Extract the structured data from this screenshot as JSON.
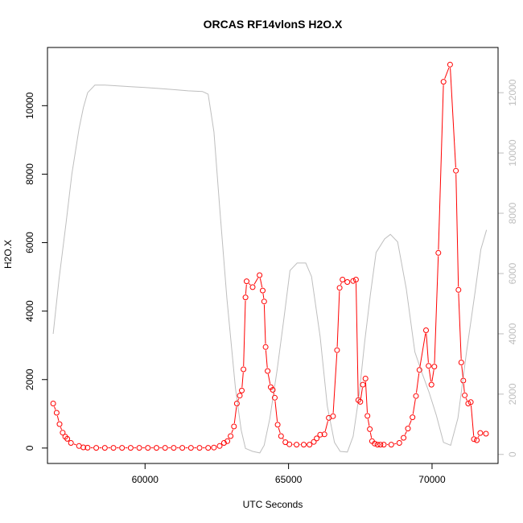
{
  "chart_data": {
    "type": "line",
    "title": "ORCAS RF14vlonS H2O.X",
    "xlabel": "UTC Seconds",
    "ylabel": "H2O.X",
    "xlim": [
      56600,
      72300
    ],
    "ylim_left": [
      -450,
      11700
    ],
    "ylim_right": [
      -300,
      13500
    ],
    "x_ticks": [
      60000,
      65000,
      70000
    ],
    "x_tick_labels": [
      "60000",
      "65000",
      "70000"
    ],
    "y_ticks_left": [
      0,
      2000,
      4000,
      6000,
      8000,
      10000
    ],
    "y_tick_labels_left": [
      "0",
      "2000",
      "4000",
      "6000",
      "8000",
      "10000"
    ],
    "y_ticks_right": [
      0,
      2000,
      4000,
      6000,
      8000,
      10000,
      12000
    ],
    "y_tick_labels_right": [
      "0",
      "2000",
      "4000",
      "6000",
      "8000",
      "10000",
      "12000"
    ],
    "grid": false,
    "series": [
      {
        "axis": "left",
        "color": "#ff0000",
        "style": "line+open-circle",
        "points": [
          [
            56800,
            1300
          ],
          [
            56920,
            1030
          ],
          [
            57020,
            700
          ],
          [
            57130,
            450
          ],
          [
            57220,
            330
          ],
          [
            57290,
            270
          ],
          [
            57420,
            150
          ],
          [
            57700,
            60
          ],
          [
            57850,
            20
          ],
          [
            58000,
            10
          ],
          [
            58300,
            5
          ],
          [
            58600,
            5
          ],
          [
            58900,
            5
          ],
          [
            59200,
            5
          ],
          [
            59500,
            5
          ],
          [
            59800,
            5
          ],
          [
            60100,
            5
          ],
          [
            60400,
            5
          ],
          [
            60700,
            5
          ],
          [
            61000,
            5
          ],
          [
            61300,
            5
          ],
          [
            61600,
            5
          ],
          [
            61900,
            5
          ],
          [
            62200,
            5
          ],
          [
            62400,
            15
          ],
          [
            62600,
            60
          ],
          [
            62750,
            150
          ],
          [
            62870,
            200
          ],
          [
            62980,
            350
          ],
          [
            63100,
            630
          ],
          [
            63200,
            1300
          ],
          [
            63300,
            1530
          ],
          [
            63370,
            1680
          ],
          [
            63430,
            2300
          ],
          [
            63500,
            4400
          ],
          [
            63540,
            4870
          ],
          [
            63750,
            4700
          ],
          [
            63990,
            5050
          ],
          [
            64100,
            4600
          ],
          [
            64150,
            4280
          ],
          [
            64200,
            2950
          ],
          [
            64270,
            2250
          ],
          [
            64380,
            1780
          ],
          [
            64450,
            1700
          ],
          [
            64520,
            1470
          ],
          [
            64620,
            680
          ],
          [
            64740,
            350
          ],
          [
            64890,
            170
          ],
          [
            65030,
            110
          ],
          [
            65280,
            100
          ],
          [
            65530,
            100
          ],
          [
            65730,
            100
          ],
          [
            65880,
            180
          ],
          [
            65980,
            280
          ],
          [
            66100,
            390
          ],
          [
            66250,
            400
          ],
          [
            66400,
            880
          ],
          [
            66550,
            930
          ],
          [
            66690,
            2860
          ],
          [
            66780,
            4680
          ],
          [
            66880,
            4920
          ],
          [
            67050,
            4850
          ],
          [
            67250,
            4880
          ],
          [
            67350,
            4920
          ],
          [
            67430,
            1400
          ],
          [
            67500,
            1350
          ],
          [
            67590,
            1850
          ],
          [
            67680,
            2030
          ],
          [
            67750,
            940
          ],
          [
            67830,
            550
          ],
          [
            67910,
            200
          ],
          [
            68000,
            130
          ],
          [
            68100,
            100
          ],
          [
            68200,
            100
          ],
          [
            68320,
            100
          ],
          [
            68580,
            100
          ],
          [
            68860,
            150
          ],
          [
            69010,
            300
          ],
          [
            69160,
            570
          ],
          [
            69320,
            900
          ],
          [
            69440,
            1520
          ],
          [
            69560,
            2280
          ],
          [
            69790,
            3440
          ],
          [
            69880,
            2400
          ],
          [
            69980,
            1850
          ],
          [
            70080,
            2380
          ],
          [
            70220,
            5700
          ],
          [
            70400,
            10700
          ],
          [
            70630,
            11200
          ],
          [
            70830,
            8100
          ],
          [
            70920,
            4620
          ],
          [
            71020,
            2500
          ],
          [
            71090,
            1970
          ],
          [
            71140,
            1540
          ],
          [
            71260,
            1300
          ],
          [
            71350,
            1340
          ],
          [
            71460,
            260
          ],
          [
            71560,
            230
          ],
          [
            71680,
            440
          ],
          [
            71880,
            420
          ]
        ]
      },
      {
        "axis": "right",
        "color": "#bebebe",
        "style": "line",
        "points": [
          [
            56800,
            4000
          ],
          [
            57000,
            5800
          ],
          [
            57250,
            7700
          ],
          [
            57450,
            9300
          ],
          [
            57700,
            10800
          ],
          [
            57850,
            11500
          ],
          [
            58000,
            12000
          ],
          [
            58250,
            12250
          ],
          [
            58600,
            12250
          ],
          [
            59000,
            12230
          ],
          [
            59500,
            12200
          ],
          [
            60000,
            12170
          ],
          [
            60500,
            12140
          ],
          [
            61000,
            12100
          ],
          [
            61500,
            12060
          ],
          [
            62000,
            12040
          ],
          [
            62200,
            11950
          ],
          [
            62400,
            10700
          ],
          [
            62600,
            8200
          ],
          [
            62850,
            5200
          ],
          [
            63150,
            2200
          ],
          [
            63350,
            800
          ],
          [
            63500,
            200
          ],
          [
            63750,
            100
          ],
          [
            64000,
            50
          ],
          [
            64150,
            300
          ],
          [
            64350,
            1200
          ],
          [
            64600,
            2800
          ],
          [
            64850,
            4600
          ],
          [
            65050,
            6100
          ],
          [
            65300,
            6350
          ],
          [
            65600,
            6350
          ],
          [
            65800,
            5900
          ],
          [
            66100,
            3900
          ],
          [
            66350,
            1600
          ],
          [
            66600,
            400
          ],
          [
            66800,
            100
          ],
          [
            67050,
            80
          ],
          [
            67250,
            600
          ],
          [
            67450,
            1900
          ],
          [
            67650,
            3700
          ],
          [
            67850,
            5300
          ],
          [
            68050,
            6700
          ],
          [
            68350,
            7150
          ],
          [
            68550,
            7300
          ],
          [
            68800,
            7050
          ],
          [
            69100,
            5500
          ],
          [
            69400,
            3400
          ],
          [
            69650,
            2700
          ],
          [
            69900,
            2050
          ],
          [
            70150,
            1300
          ],
          [
            70400,
            400
          ],
          [
            70650,
            300
          ],
          [
            70900,
            1200
          ],
          [
            71200,
            3400
          ],
          [
            71500,
            5400
          ],
          [
            71700,
            6800
          ],
          [
            71900,
            7450
          ]
        ]
      }
    ]
  }
}
